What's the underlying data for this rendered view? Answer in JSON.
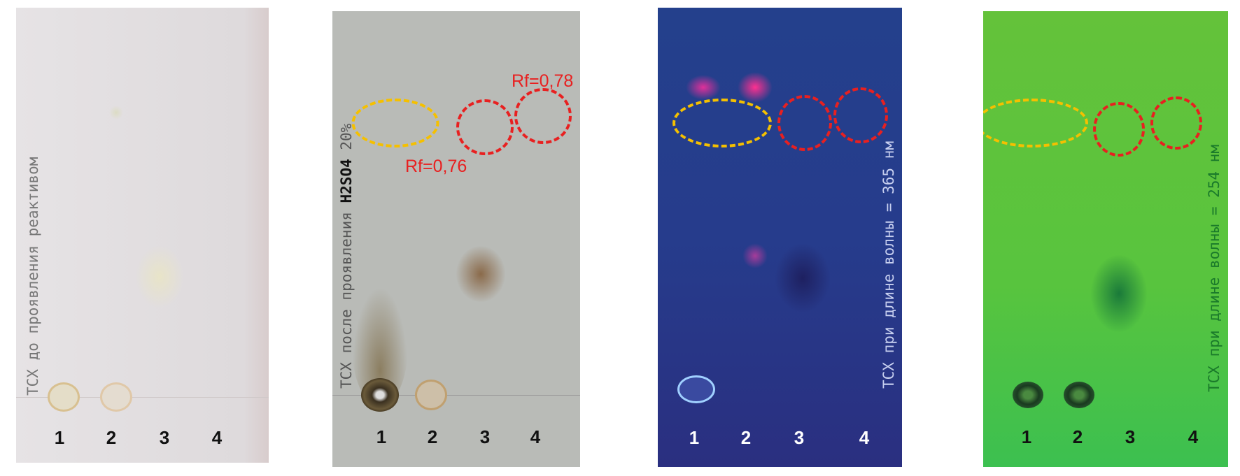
{
  "plates": [
    {
      "caption": "ТСХ до проявления реактивом",
      "lanes": [
        "1",
        "2",
        "3",
        "4"
      ],
      "background": "#e2dee0"
    },
    {
      "caption_a": "ТСХ после проявления ",
      "caption_b": "H2SO4",
      "caption_c": " 20%",
      "lanes": [
        "1",
        "2",
        "3",
        "4"
      ],
      "rf_low": "Rf=0,76",
      "rf_high": "Rf=0,78",
      "background": "#b9bbb7"
    },
    {
      "caption": "ТСХ при длине волны = 365 нм",
      "lanes": [
        "1",
        "2",
        "3",
        "4"
      ],
      "background": "#27388a"
    },
    {
      "caption": "ТСХ при длине волны = 254 нм",
      "lanes": [
        "1",
        "2",
        "3",
        "4"
      ],
      "background": "#5cc43c"
    }
  ],
  "colors": {
    "highlight_yellow": "#f5c000",
    "highlight_red": "#e82020"
  }
}
